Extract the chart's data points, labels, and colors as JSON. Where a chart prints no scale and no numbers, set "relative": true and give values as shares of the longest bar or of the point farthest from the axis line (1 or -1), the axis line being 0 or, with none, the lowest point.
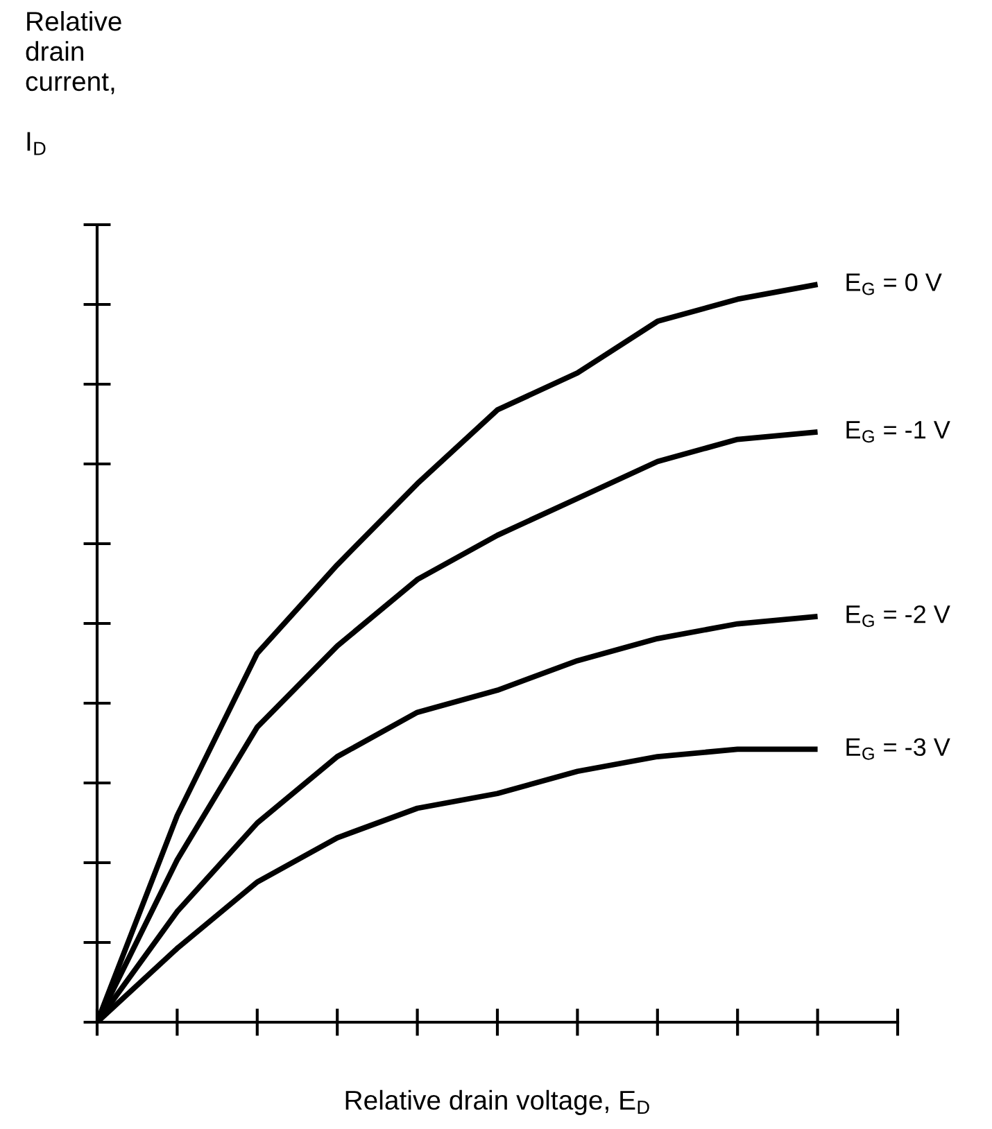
{
  "chart_data": {
    "type": "line",
    "relative": true,
    "xlabel": "Relative drain voltage, E$_{D}$",
    "ylabel": "Relative drain current, I$_{D}$",
    "categories": [
      null,
      null,
      null,
      null,
      null,
      null,
      null,
      null,
      null,
      null,
      null
    ],
    "grid": false,
    "legend": false,
    "marker": "none",
    "line_style": "solid",
    "series": [
      {
        "name": "E$_{G}$ = 0 V",
        "color": "#000000",
        "values": [
          0,
          0.28,
          0.5,
          0.62,
          0.73,
          0.83,
          0.88,
          0.95,
          0.98,
          1,
          null
        ]
      },
      {
        "name": "E$_{G}$ = -1 V",
        "color": "#000000",
        "values": [
          0,
          0.22,
          0.4,
          0.51,
          0.6,
          0.66,
          0.71,
          0.76,
          0.79,
          0.8,
          null
        ]
      },
      {
        "name": "E$_{G}$ = -2 V",
        "color": "#000000",
        "values": [
          0,
          0.15,
          0.27,
          0.36,
          0.42,
          0.45,
          0.49,
          0.52,
          0.54,
          0.55,
          null
        ]
      },
      {
        "name": "E$_{G}$ = -3 V",
        "color": "#000000",
        "values": [
          0,
          0.1,
          0.19,
          0.25,
          0.29,
          0.31,
          0.34,
          0.36,
          0.37,
          0.37,
          null
        ]
      }
    ]
  }
}
